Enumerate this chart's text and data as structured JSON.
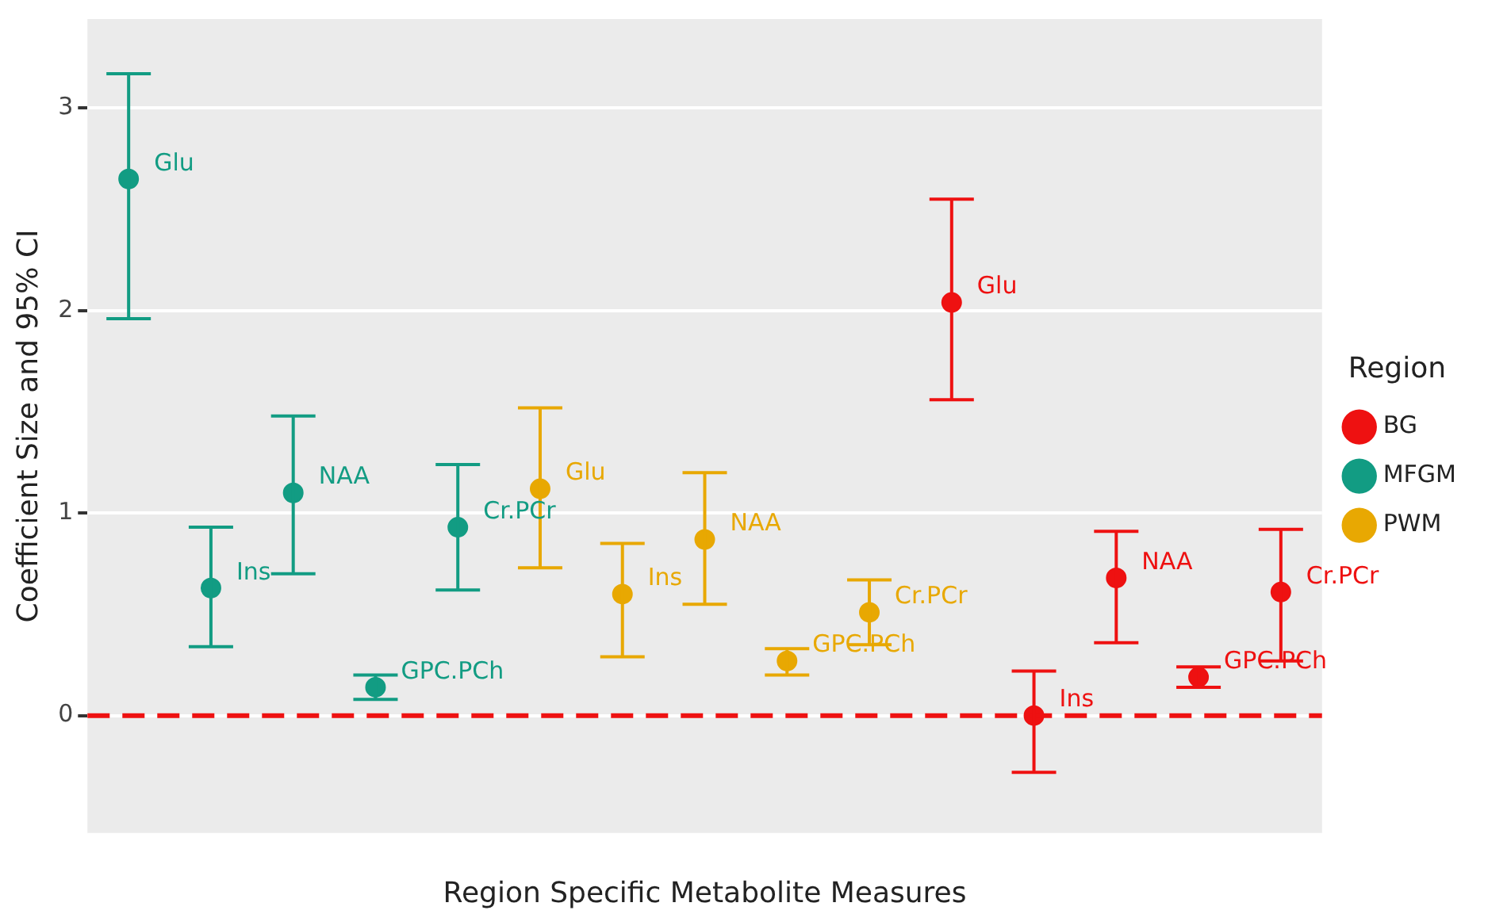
{
  "chart_data": {
    "type": "scatter",
    "xlabel": "Region Specific Metabolite Measures",
    "ylabel": "Coefficient Size and 95% CI",
    "legend_title": "Region",
    "legend": "right",
    "grid": "y",
    "marker": "circle",
    "categories": [
      null,
      null,
      null,
      null,
      null,
      null,
      null,
      null,
      null,
      null,
      null,
      null,
      null,
      null,
      null
    ],
    "ylim": [
      -0.58,
      3.44
    ],
    "yticks": [
      0,
      1,
      2,
      3
    ],
    "ref_lines": [
      {
        "axis": "y",
        "value": 0,
        "color": "#ee1111",
        "line_style": "dashed"
      }
    ],
    "series": [
      {
        "name": "BG",
        "color": "#ee1111",
        "values": [
          null,
          null,
          null,
          null,
          null,
          null,
          null,
          null,
          null,
          null,
          2.04,
          0.0,
          0.68,
          0.19,
          0.61
        ],
        "errors": [
          null,
          null,
          null,
          null,
          null,
          null,
          null,
          null,
          null,
          null,
          [
            1.56,
            2.55
          ],
          [
            -0.28,
            0.22
          ],
          [
            0.36,
            0.91
          ],
          [
            0.14,
            0.24
          ],
          [
            0.27,
            0.92
          ]
        ]
      },
      {
        "name": "MFGM",
        "color": "#129c83",
        "values": [
          2.65,
          0.63,
          1.1,
          0.14,
          0.93,
          null,
          null,
          null,
          null,
          null,
          null,
          null,
          null,
          null,
          null
        ],
        "errors": [
          [
            1.96,
            3.17
          ],
          [
            0.34,
            0.93
          ],
          [
            0.7,
            1.48
          ],
          [
            0.08,
            0.2
          ],
          [
            0.62,
            1.24
          ],
          null,
          null,
          null,
          null,
          null,
          null,
          null,
          null,
          null,
          null
        ]
      },
      {
        "name": "PWM",
        "color": "#e8a802",
        "values": [
          null,
          null,
          null,
          null,
          null,
          1.12,
          0.6,
          0.87,
          0.27,
          0.51,
          null,
          null,
          null,
          null,
          null
        ],
        "errors": [
          null,
          null,
          null,
          null,
          null,
          [
            0.73,
            1.52
          ],
          [
            0.29,
            0.85
          ],
          [
            0.55,
            1.2
          ],
          [
            0.2,
            0.33
          ],
          [
            0.35,
            0.67
          ],
          null,
          null,
          null,
          null,
          null
        ]
      }
    ],
    "annotations": [
      "Glu",
      "Ins",
      "NAA",
      "GPC.PCh",
      "Cr.PCr",
      "Glu",
      "Ins",
      "NAA",
      "GPC.PCh",
      "Cr.PCr",
      "Glu",
      "Ins",
      "NAA",
      "GPC.PCh",
      "Cr.PCr"
    ]
  }
}
